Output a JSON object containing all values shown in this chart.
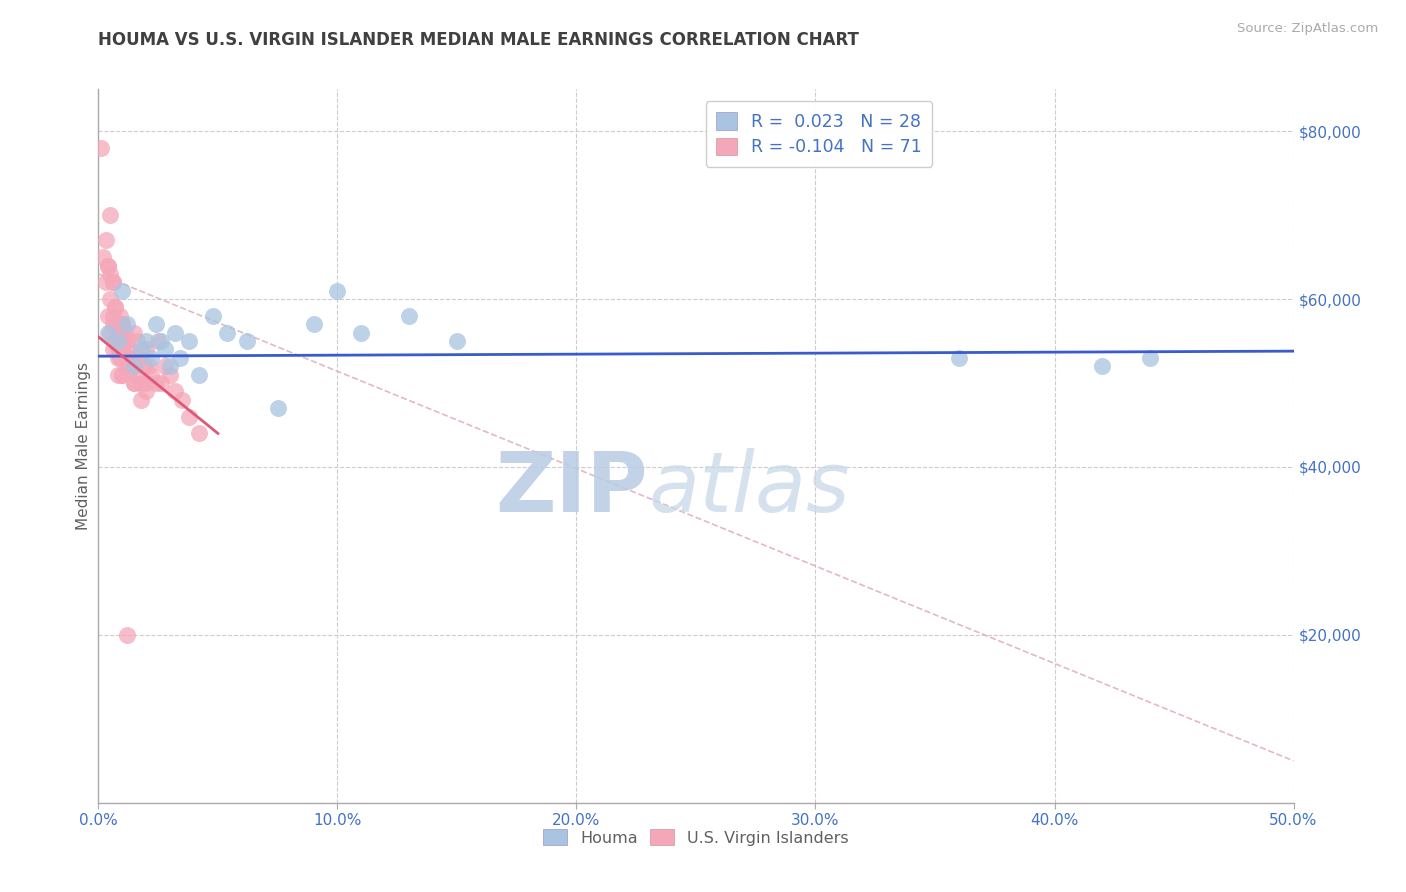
{
  "title": "HOUMA VS U.S. VIRGIN ISLANDER MEDIAN MALE EARNINGS CORRELATION CHART",
  "source_text": "Source: ZipAtlas.com",
  "ylabel": "Median Male Earnings",
  "xlim": [
    0.0,
    0.5
  ],
  "ylim": [
    0,
    85000
  ],
  "xtick_labels": [
    "0.0%",
    "10.0%",
    "20.0%",
    "30.0%",
    "40.0%",
    "50.0%"
  ],
  "xtick_vals": [
    0.0,
    0.1,
    0.2,
    0.3,
    0.4,
    0.5
  ],
  "ytick_vals": [
    0,
    20000,
    40000,
    60000,
    80000
  ],
  "ytick_labels": [
    "",
    "$20,000",
    "$40,000",
    "$60,000",
    "$80,000"
  ],
  "houma_R": 0.023,
  "houma_N": 28,
  "virgin_R": -0.104,
  "virgin_N": 71,
  "houma_color": "#a8c4e0",
  "virgin_color": "#f4a7b9",
  "houma_trend_color": "#3a5bcc",
  "virgin_trend_color": "#e05878",
  "legend_text_color": "#4472c4",
  "title_color": "#404040",
  "background_color": "#ffffff",
  "grid_color": "#cccccc",
  "watermark_color": "#ccdcee",
  "houma_x": [
    0.004,
    0.008,
    0.01,
    0.012,
    0.015,
    0.018,
    0.02,
    0.022,
    0.024,
    0.026,
    0.028,
    0.03,
    0.032,
    0.034,
    0.038,
    0.042,
    0.048,
    0.054,
    0.062,
    0.075,
    0.09,
    0.1,
    0.11,
    0.13,
    0.15,
    0.36,
    0.42,
    0.44
  ],
  "houma_y": [
    56000,
    55000,
    61000,
    57000,
    52000,
    54000,
    55000,
    53000,
    57000,
    55000,
    54000,
    52000,
    56000,
    53000,
    55000,
    51000,
    58000,
    56000,
    55000,
    47000,
    57000,
    61000,
    56000,
    58000,
    55000,
    53000,
    52000,
    53000
  ],
  "virgin_x": [
    0.001,
    0.002,
    0.003,
    0.003,
    0.004,
    0.004,
    0.005,
    0.005,
    0.005,
    0.006,
    0.006,
    0.006,
    0.007,
    0.007,
    0.008,
    0.008,
    0.008,
    0.009,
    0.009,
    0.01,
    0.01,
    0.01,
    0.011,
    0.012,
    0.012,
    0.013,
    0.014,
    0.015,
    0.015,
    0.016,
    0.016,
    0.017,
    0.018,
    0.019,
    0.02,
    0.02,
    0.021,
    0.022,
    0.024,
    0.025,
    0.026,
    0.028,
    0.03,
    0.032,
    0.035,
    0.038,
    0.042,
    0.01,
    0.013,
    0.008,
    0.006,
    0.007,
    0.009,
    0.005,
    0.004,
    0.012,
    0.015,
    0.018,
    0.02,
    0.01,
    0.008,
    0.006,
    0.009,
    0.012,
    0.015,
    0.01,
    0.007,
    0.008,
    0.009,
    0.01,
    0.012
  ],
  "virgin_y": [
    78000,
    65000,
    67000,
    62000,
    64000,
    58000,
    70000,
    63000,
    56000,
    62000,
    57000,
    54000,
    59000,
    55000,
    57000,
    54000,
    51000,
    58000,
    53000,
    57000,
    55000,
    51000,
    56000,
    55000,
    52000,
    54000,
    53000,
    56000,
    52000,
    55000,
    51000,
    53000,
    50000,
    52000,
    54000,
    50000,
    52000,
    51000,
    50000,
    55000,
    50000,
    52000,
    51000,
    49000,
    48000,
    46000,
    44000,
    56000,
    52000,
    55000,
    62000,
    59000,
    57000,
    60000,
    64000,
    53000,
    50000,
    48000,
    49000,
    54000,
    56000,
    58000,
    55000,
    53000,
    50000,
    57000,
    55000,
    53000,
    54000,
    51000,
    20000
  ],
  "ref_line_x": [
    0.0,
    0.5
  ],
  "ref_line_y": [
    63000,
    5000
  ],
  "ref_line_color": "#e0b0c0",
  "houma_trend_x": [
    0.0,
    0.5
  ],
  "houma_trend_y": [
    53200,
    53800
  ],
  "virgin_trend_x": [
    0.0,
    0.05
  ],
  "virgin_trend_y": [
    55500,
    44000
  ]
}
